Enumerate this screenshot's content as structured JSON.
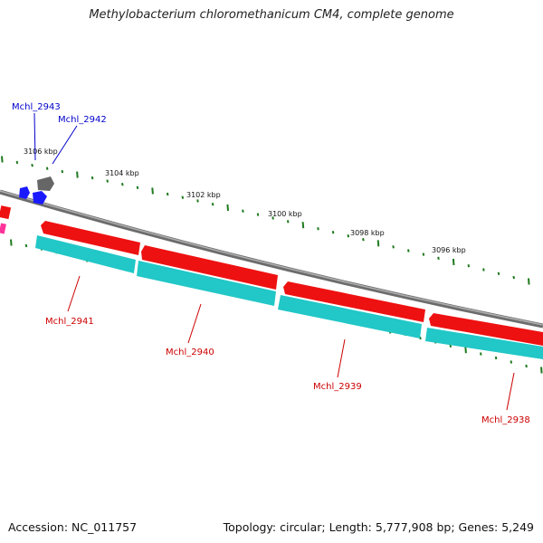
{
  "title": "Methylobacterium chloromethanicum CM4, complete genome",
  "footer": {
    "accession": "Accession: NC_011757",
    "summary": "Topology: circular; Length: 5,777,908 bp; Genes: 5,249"
  },
  "scale_labels": [
    "3106 kbp",
    "3104 kbp",
    "3102 kbp",
    "3100 kbp",
    "3098 kbp",
    "3096 kbp"
  ],
  "genes_reverse": [
    "Mchl_2941",
    "Mchl_2940",
    "Mchl_2939",
    "Mchl_2938"
  ],
  "genes_forward": [
    "Mchl_2943",
    "Mchl_2942"
  ],
  "colors": {
    "reverse_label": "#cc0000",
    "forward_label": "#0000cc",
    "gene_red": "#ee1111",
    "gene_cyan": "#22c7c7",
    "tick_green": "#1f7a1f",
    "backbone": "#888888",
    "forward_gene": "#1a1aff",
    "grey_gene": "#666666",
    "pink_gene": "#ff3399"
  }
}
